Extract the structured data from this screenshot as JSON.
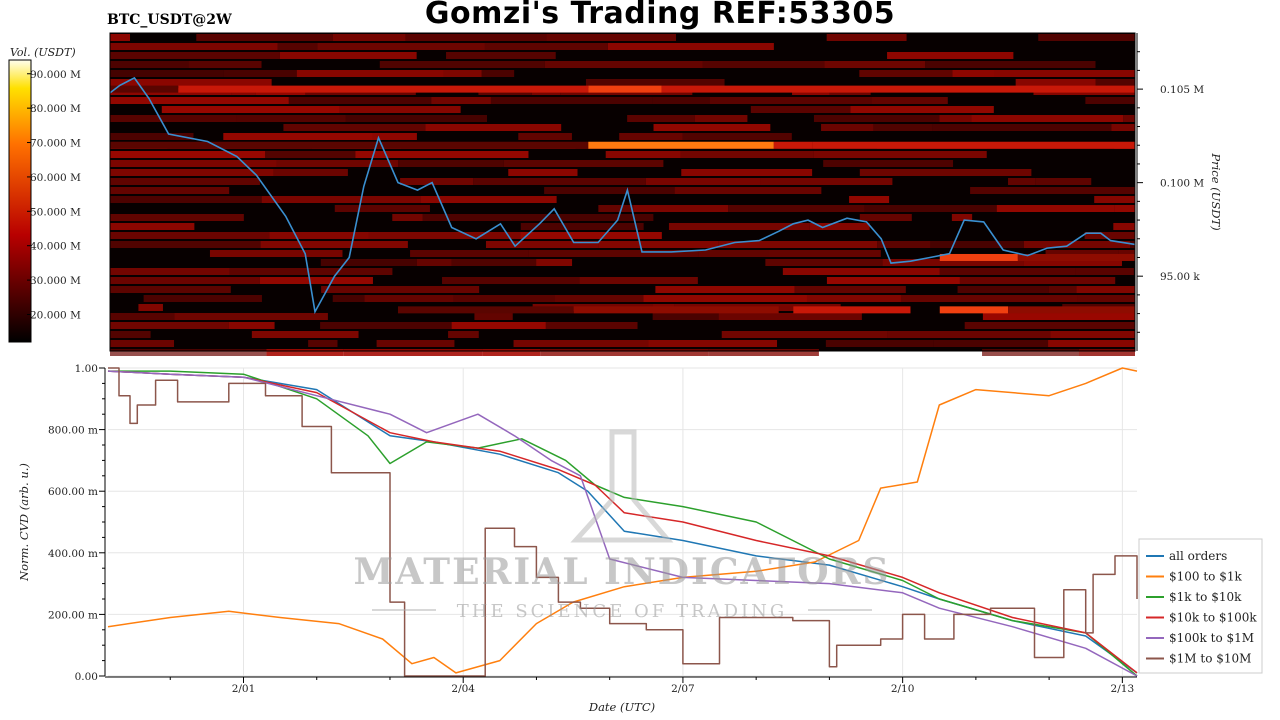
{
  "header": {
    "title": "Gomzi's Trading REF:53305",
    "pair": "BTC_USDT@2W"
  },
  "colors": {
    "all orders": "#1f77b4",
    "$100 to $1k": "#ff7f0e",
    "$1k to $10k": "#2ca02c",
    "$10k to $100k": "#d62728",
    "$100k to $1M": "#9467bd",
    "$1M to $10M": "#8c564b"
  },
  "watermark": {
    "line1": "MATERIAL INDICATORS",
    "line2": "THE SCIENCE OF TRADING"
  },
  "chart_data": [
    {
      "type": "heatmap",
      "colorbar": {
        "label": "Vol. (USDT)",
        "ticks": [
          "90.000 M",
          "80.000 M",
          "70.000 M",
          "60.000 M",
          "50.000 M",
          "40.000 M",
          "30.000 M",
          "20.000 M"
        ],
        "range": [
          12000000,
          94000000
        ]
      },
      "ylabel": "Price (USDT)",
      "yticks": [
        "0.105 M",
        "0.100 M",
        "95.00 k"
      ],
      "ylim": [
        91000,
        108000
      ],
      "price_series": {
        "name": "price",
        "points": [
          [
            0,
            104800
          ],
          [
            0.2,
            105200
          ],
          [
            0.5,
            105600
          ],
          [
            0.8,
            104500
          ],
          [
            1.2,
            102600
          ],
          [
            2.0,
            102200
          ],
          [
            2.6,
            101400
          ],
          [
            3.0,
            100400
          ],
          [
            3.6,
            98200
          ],
          [
            4.0,
            96200
          ],
          [
            4.2,
            93100
          ],
          [
            4.6,
            95000
          ],
          [
            4.9,
            96000
          ],
          [
            5.2,
            99800
          ],
          [
            5.5,
            102400
          ],
          [
            5.9,
            100000
          ],
          [
            6.3,
            99600
          ],
          [
            6.6,
            100000
          ],
          [
            7.0,
            97600
          ],
          [
            7.5,
            97000
          ],
          [
            8.0,
            97800
          ],
          [
            8.3,
            96600
          ],
          [
            8.8,
            97800
          ],
          [
            9.1,
            98600
          ],
          [
            9.5,
            96800
          ],
          [
            10.0,
            96800
          ],
          [
            10.4,
            98000
          ],
          [
            10.6,
            99600
          ],
          [
            10.9,
            96300
          ],
          [
            11.5,
            96300
          ],
          [
            12.2,
            96400
          ],
          [
            12.8,
            96800
          ],
          [
            13.3,
            96900
          ],
          [
            13.7,
            97400
          ],
          [
            14.0,
            97800
          ],
          [
            14.3,
            98000
          ],
          [
            14.6,
            97600
          ],
          [
            15.1,
            98100
          ],
          [
            15.5,
            97900
          ],
          [
            15.8,
            97000
          ],
          [
            16.0,
            95700
          ],
          [
            16.4,
            95800
          ],
          [
            16.8,
            96000
          ],
          [
            17.2,
            96200
          ],
          [
            17.5,
            98000
          ],
          [
            17.9,
            97900
          ],
          [
            18.3,
            96400
          ],
          [
            18.8,
            96100
          ],
          [
            19.2,
            96500
          ],
          [
            19.6,
            96600
          ],
          [
            20.0,
            97300
          ],
          [
            20.3,
            97300
          ],
          [
            20.5,
            96900
          ],
          [
            21.0,
            96700
          ]
        ]
      },
      "bands": [
        {
          "price": 105000,
          "segments": [
            [
              0,
              1.4,
              0.28
            ],
            [
              1.4,
              9.8,
              0.7
            ],
            [
              9.8,
              11.3,
              0.92
            ],
            [
              11.3,
              21,
              0.7
            ]
          ]
        },
        {
          "price": 102000,
          "segments": [
            [
              0,
              9.8,
              0.25
            ],
            [
              9.8,
              13.6,
              1.0
            ],
            [
              13.6,
              14.4,
              0.75
            ],
            [
              14.4,
              21,
              0.62
            ]
          ]
        },
        {
          "price": 93200,
          "segments": [
            [
              5.9,
              9.5,
              0.4
            ],
            [
              9.5,
              13.7,
              0.5
            ],
            [
              14.0,
              16.4,
              0.8
            ],
            [
              17.0,
              18.4,
              0.9
            ],
            [
              18.4,
              21,
              0.45
            ]
          ]
        },
        {
          "price": 96000,
          "segments": [
            [
              17.0,
              18.6,
              0.85
            ],
            [
              18.6,
              21,
              0.45
            ]
          ]
        }
      ]
    },
    {
      "type": "line",
      "xlabel": "Date (UTC)",
      "ylabel": "Norm. CVD (arb. u.)",
      "xticks": [
        {
          "x": 1,
          "label": "2/01"
        },
        {
          "x": 4,
          "label": "2/04"
        },
        {
          "x": 7,
          "label": "2/07"
        },
        {
          "x": 10,
          "label": "2/10"
        },
        {
          "x": 13,
          "label": "2/13"
        }
      ],
      "xlim": [
        -0.85,
        13.2
      ],
      "yticks": [
        "0.00",
        "200.00 m",
        "400.00 m",
        "600.00 m",
        "800.00 m",
        "1.00"
      ],
      "ylim": [
        0,
        1
      ],
      "grid": true,
      "legend": "right",
      "series": [
        {
          "name": "all orders",
          "points": [
            [
              -0.85,
              0.99
            ],
            [
              0,
              0.98
            ],
            [
              1.0,
              0.97
            ],
            [
              2.0,
              0.93
            ],
            [
              3.0,
              0.78
            ],
            [
              3.6,
              0.76
            ],
            [
              4.5,
              0.72
            ],
            [
              5.3,
              0.66
            ],
            [
              5.7,
              0.6
            ],
            [
              6.2,
              0.47
            ],
            [
              7.0,
              0.44
            ],
            [
              8.0,
              0.39
            ],
            [
              9.0,
              0.36
            ],
            [
              10.0,
              0.29
            ],
            [
              10.5,
              0.25
            ],
            [
              11.5,
              0.18
            ],
            [
              12.5,
              0.13
            ],
            [
              13.2,
              0.01
            ]
          ]
        },
        {
          "name": "$100 to $1k",
          "points": [
            [
              -0.85,
              0.16
            ],
            [
              0,
              0.19
            ],
            [
              0.8,
              0.21
            ],
            [
              1.5,
              0.19
            ],
            [
              2.3,
              0.17
            ],
            [
              2.9,
              0.12
            ],
            [
              3.3,
              0.04
            ],
            [
              3.6,
              0.06
            ],
            [
              3.9,
              0.01
            ],
            [
              4.5,
              0.05
            ],
            [
              5.0,
              0.17
            ],
            [
              5.5,
              0.24
            ],
            [
              6.2,
              0.29
            ],
            [
              7.0,
              0.32
            ],
            [
              8.0,
              0.34
            ],
            [
              8.8,
              0.37
            ],
            [
              9.4,
              0.44
            ],
            [
              9.7,
              0.61
            ],
            [
              10.2,
              0.63
            ],
            [
              10.5,
              0.88
            ],
            [
              11.0,
              0.93
            ],
            [
              12.0,
              0.91
            ],
            [
              12.5,
              0.95
            ],
            [
              13.0,
              1.0
            ],
            [
              13.2,
              0.99
            ]
          ]
        },
        {
          "name": "$1k to $10k",
          "points": [
            [
              -0.85,
              0.99
            ],
            [
              0,
              0.99
            ],
            [
              1.0,
              0.98
            ],
            [
              2.0,
              0.9
            ],
            [
              2.7,
              0.78
            ],
            [
              3.0,
              0.69
            ],
            [
              3.5,
              0.76
            ],
            [
              4.2,
              0.74
            ],
            [
              4.8,
              0.77
            ],
            [
              5.4,
              0.7
            ],
            [
              5.8,
              0.62
            ],
            [
              6.2,
              0.58
            ],
            [
              7.0,
              0.55
            ],
            [
              8.0,
              0.5
            ],
            [
              9.0,
              0.38
            ],
            [
              10.0,
              0.31
            ],
            [
              10.5,
              0.25
            ],
            [
              11.5,
              0.18
            ],
            [
              12.5,
              0.14
            ],
            [
              13.2,
              0.0
            ]
          ]
        },
        {
          "name": "$10k to $100k",
          "points": [
            [
              -0.85,
              0.99
            ],
            [
              0,
              0.98
            ],
            [
              1.0,
              0.97
            ],
            [
              2.0,
              0.92
            ],
            [
              3.0,
              0.79
            ],
            [
              3.6,
              0.76
            ],
            [
              4.5,
              0.73
            ],
            [
              5.3,
              0.67
            ],
            [
              5.8,
              0.62
            ],
            [
              6.2,
              0.53
            ],
            [
              7.0,
              0.5
            ],
            [
              8.0,
              0.44
            ],
            [
              9.0,
              0.39
            ],
            [
              10.0,
              0.32
            ],
            [
              10.5,
              0.27
            ],
            [
              11.5,
              0.19
            ],
            [
              12.5,
              0.14
            ],
            [
              13.2,
              0.01
            ]
          ]
        },
        {
          "name": "$100k to $1M",
          "points": [
            [
              -0.85,
              0.99
            ],
            [
              0,
              0.98
            ],
            [
              1.0,
              0.97
            ],
            [
              2.0,
              0.91
            ],
            [
              3.0,
              0.85
            ],
            [
              3.5,
              0.79
            ],
            [
              4.2,
              0.85
            ],
            [
              4.7,
              0.78
            ],
            [
              5.2,
              0.7
            ],
            [
              5.6,
              0.65
            ],
            [
              6.0,
              0.38
            ],
            [
              7.0,
              0.32
            ],
            [
              8.0,
              0.31
            ],
            [
              9.0,
              0.3
            ],
            [
              10.0,
              0.27
            ],
            [
              10.5,
              0.22
            ],
            [
              11.5,
              0.16
            ],
            [
              12.5,
              0.09
            ],
            [
              13.2,
              0.0
            ]
          ]
        },
        {
          "name": "$1M to $10M",
          "points": [
            [
              -0.85,
              1.0
            ],
            [
              -0.7,
              0.91
            ],
            [
              -0.55,
              0.82
            ],
            [
              -0.45,
              0.88
            ],
            [
              -0.2,
              0.96
            ],
            [
              0.1,
              0.89
            ],
            [
              0.8,
              0.95
            ],
            [
              1.3,
              0.91
            ],
            [
              1.8,
              0.81
            ],
            [
              2.2,
              0.66
            ],
            [
              2.8,
              0.66
            ],
            [
              3.0,
              0.24
            ],
            [
              3.2,
              0.0
            ],
            [
              4.0,
              0.0
            ],
            [
              4.3,
              0.48
            ],
            [
              4.7,
              0.42
            ],
            [
              5.0,
              0.32
            ],
            [
              5.3,
              0.24
            ],
            [
              5.6,
              0.22
            ],
            [
              6.0,
              0.17
            ],
            [
              6.5,
              0.15
            ],
            [
              7.0,
              0.04
            ],
            [
              7.5,
              0.19
            ],
            [
              8.0,
              0.19
            ],
            [
              8.5,
              0.18
            ],
            [
              9.0,
              0.03
            ],
            [
              9.1,
              0.1
            ],
            [
              9.7,
              0.12
            ],
            [
              10.0,
              0.2
            ],
            [
              10.3,
              0.12
            ],
            [
              10.7,
              0.2
            ],
            [
              11.2,
              0.22
            ],
            [
              11.8,
              0.06
            ],
            [
              12.2,
              0.28
            ],
            [
              12.5,
              0.14
            ],
            [
              12.6,
              0.33
            ],
            [
              12.9,
              0.39
            ],
            [
              13.2,
              0.25
            ]
          ]
        }
      ]
    }
  ]
}
